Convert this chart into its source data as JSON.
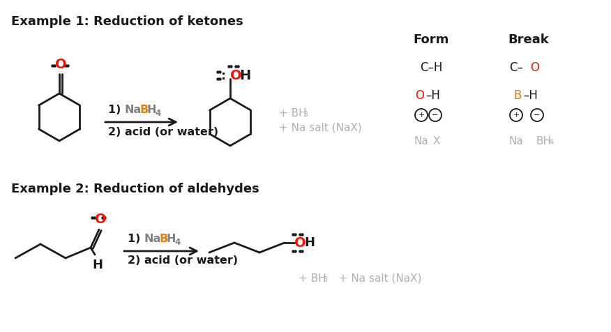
{
  "bg_color": "#ffffff",
  "text_black": "#1a1a1a",
  "text_red": "#e8190a",
  "text_orange": "#e87d0a",
  "text_gray": "#b0b0b0",
  "text_darkgray": "#808080",
  "example1_title": "Example 1: Reduction of ketones",
  "example2_title": "Example 2: Reduction of aldehydes",
  "form_header": "Form",
  "break_header": "Break",
  "fig_width": 8.76,
  "fig_height": 4.76
}
